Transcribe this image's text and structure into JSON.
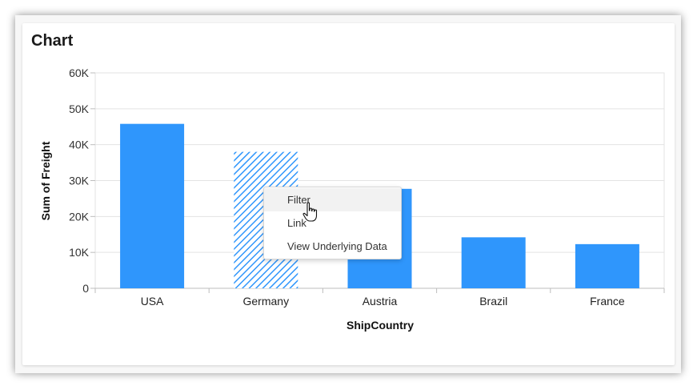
{
  "card": {
    "title": "Chart"
  },
  "chart_data": {
    "type": "bar",
    "categories": [
      "USA",
      "Germany",
      "Austria",
      "Brazil",
      "France"
    ],
    "values": [
      45800,
      38000,
      27700,
      14200,
      12300
    ],
    "highlighted_category": "Germany",
    "xlabel": "ShipCountry",
    "ylabel": "Sum of Freight",
    "ylim": [
      0,
      60000
    ],
    "yticks": [
      "0",
      "10K",
      "20K",
      "30K",
      "40K",
      "50K",
      "60K"
    ],
    "grid": true,
    "bar_color": "#2f96fc"
  },
  "context_menu": {
    "items": [
      {
        "label": "Filter",
        "hovered": true
      },
      {
        "label": "Link",
        "hovered": false
      },
      {
        "label": "View Underlying Data",
        "hovered": false
      }
    ]
  },
  "cursor": {
    "icon": "hand-pointer-icon"
  }
}
